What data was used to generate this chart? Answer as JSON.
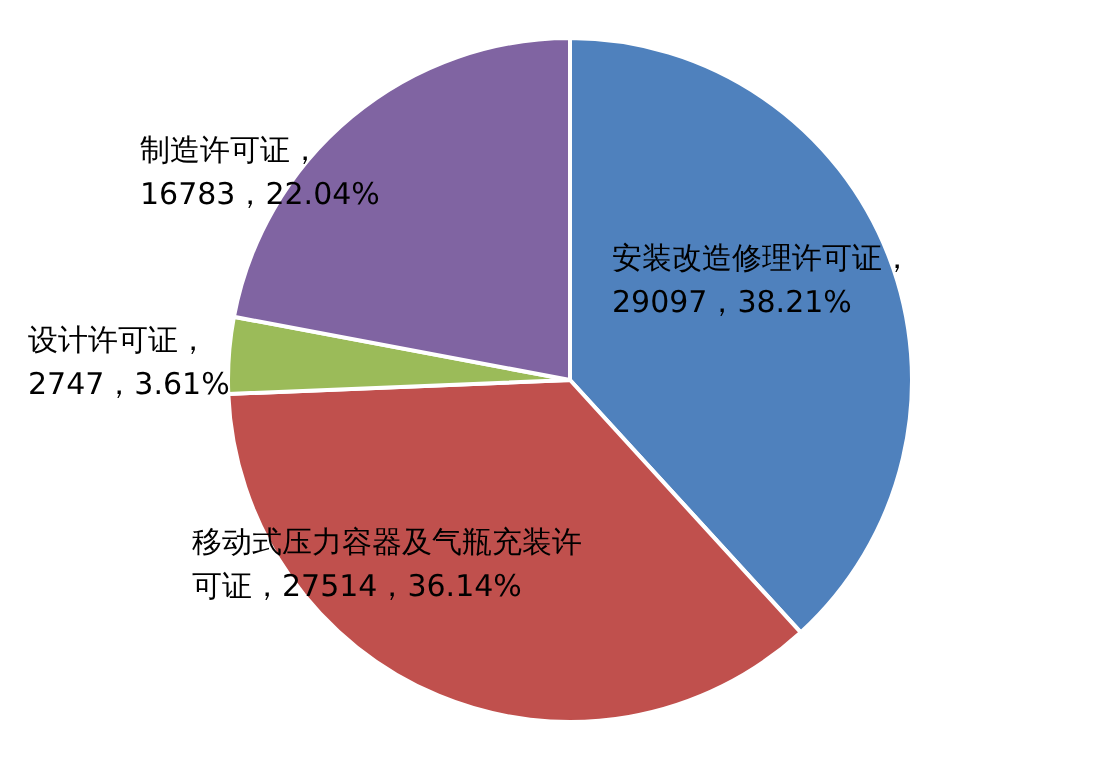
{
  "chart_data": {
    "type": "pie",
    "categories": [
      "安装改造修理许可证",
      "移动式压力容器及气瓶充装许可证",
      "设计许可证",
      "制造许可证"
    ],
    "values": [
      29097,
      27514,
      2747,
      16783
    ],
    "colors": [
      "#4f81bd",
      "#c0504d",
      "#9bbb59",
      "#8064a2"
    ],
    "value_labels": [
      "，29097，38.21%",
      "，27514，36.14%",
      "，2747，3.61%",
      "，16783，22.04%"
    ]
  }
}
